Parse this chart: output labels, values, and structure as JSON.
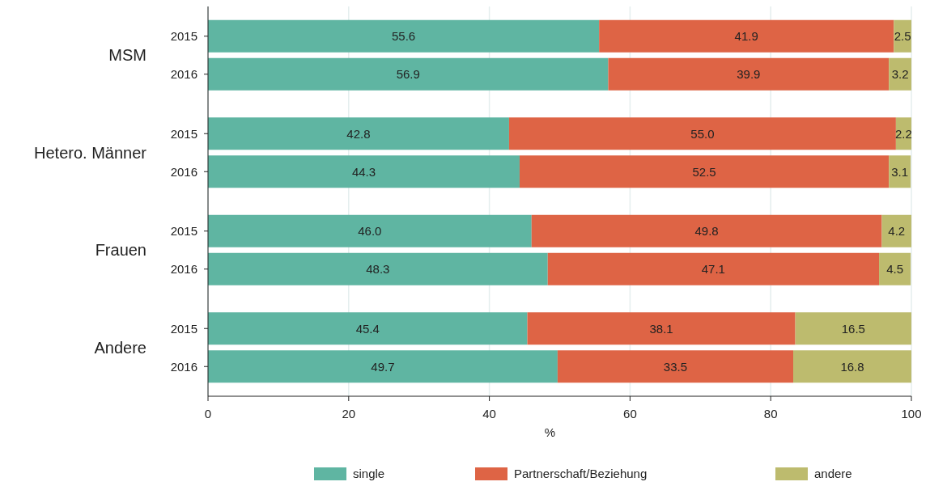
{
  "chart_data": {
    "type": "bar",
    "orientation": "horizontal",
    "stacked": true,
    "categories": [
      "2015",
      "2016",
      "2015",
      "2016",
      "2015",
      "2016",
      "2015",
      "2016"
    ],
    "annotations": [
      "MSM",
      "Hetero. Männer",
      "Frauen",
      "Andere"
    ],
    "xlabel": "%",
    "xlim": [
      0,
      100
    ],
    "xticks": [
      0,
      20,
      40,
      60,
      80,
      100
    ],
    "grid": "x",
    "legend": "bottom",
    "series": [
      {
        "name": "single",
        "color": "#5fb5a2",
        "values": [
          55.6,
          56.9,
          42.8,
          44.3,
          46.0,
          48.3,
          45.4,
          49.7
        ],
        "value_labels": [
          "55.6",
          "56.9",
          "42.8",
          "44.3",
          "46.0",
          "48.3",
          "45.4",
          "49.7"
        ]
      },
      {
        "name": "Partnerschaft/Beziehung",
        "color": "#de6445",
        "values": [
          41.9,
          39.9,
          55.0,
          52.5,
          49.8,
          47.1,
          38.1,
          33.5
        ],
        "value_labels": [
          "41.9",
          "39.9",
          "55.0",
          "52.5",
          "49.8",
          "47.1",
          "38.1",
          "33.5"
        ]
      },
      {
        "name": "andere",
        "color": "#bdbb6e",
        "values": [
          2.5,
          3.2,
          2.2,
          3.1,
          4.2,
          4.5,
          16.5,
          16.8
        ],
        "value_labels": [
          "2.5",
          "3.2",
          "2.2",
          "3.1",
          "4.2",
          "4.5",
          "16.5",
          "16.8"
        ]
      }
    ]
  }
}
